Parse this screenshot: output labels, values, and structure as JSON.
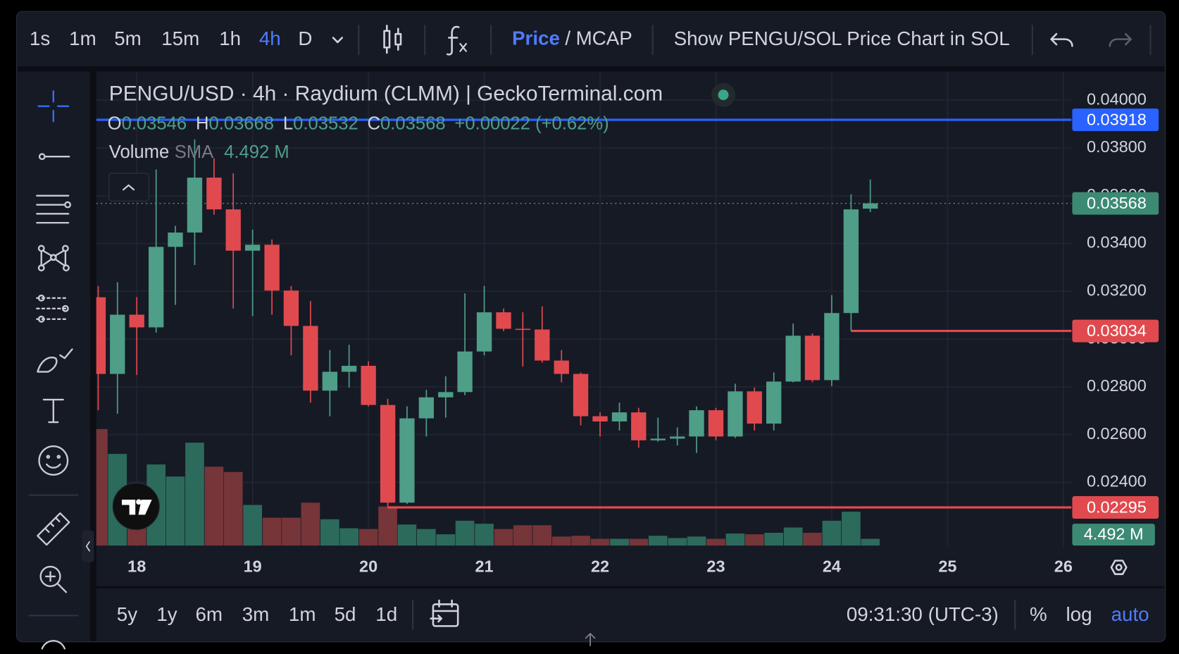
{
  "toolbar": {
    "intervals": [
      "1s",
      "1m",
      "5m",
      "15m",
      "1h",
      "4h",
      "D"
    ],
    "selected_interval": "4h",
    "price_toggle": {
      "price": "Price",
      "separator": "/",
      "mcap": "MCAP"
    },
    "sol_toggle": "Show PENGU/SOL Price Chart in SOL"
  },
  "bottom_bar": {
    "ranges": [
      "5y",
      "1y",
      "6m",
      "3m",
      "1m",
      "5d",
      "1d"
    ],
    "clock": "09:31:30 (UTC-3)",
    "scale_options": [
      "%",
      "log",
      "auto"
    ],
    "selected_scale": "auto"
  },
  "chart_data": {
    "type": "candlestick",
    "title": "PENGU/USD · 4h · Raydium (CLMM) | GeckoTerminal.com",
    "x": [
      17.667,
      17.833,
      18,
      18.167,
      18.333,
      18.5,
      18.667,
      18.833,
      19,
      19.167,
      19.333,
      19.5,
      19.667,
      19.833,
      20,
      20.167,
      20.333,
      20.5,
      20.667,
      20.833,
      21,
      21.167,
      21.333,
      21.5,
      21.667,
      21.833,
      22,
      22.167,
      22.333,
      22.5,
      22.667,
      22.833,
      23,
      23.167,
      23.333,
      23.5,
      23.667,
      23.833,
      24,
      24.167,
      24.333
    ],
    "open": [
      0.03175,
      0.02854,
      0.03102,
      0.03049,
      0.03386,
      0.03446,
      0.03676,
      0.03543,
      0.0337,
      0.03395,
      0.03203,
      0.03055,
      0.02784,
      0.02863,
      0.02888,
      0.02724,
      0.02315,
      0.02668,
      0.02756,
      0.02778,
      0.02948,
      0.03112,
      0.03043,
      0.0304,
      0.0291,
      0.02854,
      0.02677,
      0.02655,
      0.02693,
      0.02576,
      0.02583,
      0.02592,
      0.02702,
      0.02592,
      0.02781,
      0.02646,
      0.02822,
      0.03014,
      0.02828,
      0.03109,
      0.03546
    ],
    "high": [
      0.03222,
      0.03238,
      0.03175,
      0.0371,
      0.03474,
      0.03836,
      0.03757,
      0.03694,
      0.03458,
      0.03417,
      0.03222,
      0.03159,
      0.02954,
      0.02976,
      0.02907,
      0.0275,
      0.02718,
      0.02787,
      0.02844,
      0.03191,
      0.03222,
      0.03128,
      0.03112,
      0.03137,
      0.02954,
      0.0286,
      0.02693,
      0.02734,
      0.02712,
      0.02671,
      0.0263,
      0.02718,
      0.02712,
      0.02813,
      0.02797,
      0.0286,
      0.03065,
      0.03024,
      0.03184,
      0.03606,
      0.03668
    ],
    "low": [
      0.02702,
      0.02687,
      0.0285,
      0.03027,
      0.03143,
      0.0331,
      0.03521,
      0.03128,
      0.03096,
      0.03102,
      0.02932,
      0.02734,
      0.02677,
      0.02797,
      0.02718,
      0.02295,
      0.02309,
      0.02592,
      0.02671,
      0.02765,
      0.02932,
      0.03033,
      0.02885,
      0.02901,
      0.02819,
      0.02639,
      0.02592,
      0.02617,
      0.02545,
      0.0257,
      0.02554,
      0.02523,
      0.02576,
      0.02586,
      0.02617,
      0.02617,
      0.02819,
      0.02819,
      0.02803,
      0.03034,
      0.03532
    ],
    "close": [
      0.02854,
      0.03102,
      0.03049,
      0.03386,
      0.03446,
      0.03676,
      0.03543,
      0.0337,
      0.03395,
      0.03203,
      0.03055,
      0.02784,
      0.02863,
      0.02888,
      0.02724,
      0.02315,
      0.02668,
      0.02756,
      0.02778,
      0.02948,
      0.03112,
      0.03043,
      0.0304,
      0.0291,
      0.02854,
      0.02677,
      0.02655,
      0.02693,
      0.02576,
      0.02583,
      0.02592,
      0.02702,
      0.02592,
      0.02781,
      0.02646,
      0.02822,
      0.03014,
      0.02828,
      0.03109,
      0.03543,
      0.03568
    ],
    "up_color": "#4e9e88",
    "down_color": "#e04a4f",
    "legend": {
      "open_letter": "O",
      "high_letter": "H",
      "low_letter": "L",
      "close_letter": "C",
      "change": "+0.00022 (+0.62%)"
    },
    "volume": {
      "name": "Volume",
      "indicator": "SMA",
      "sma_label": "4.492 M",
      "last_label": "4.492 M",
      "up_color": "#2c6a5c",
      "down_color": "#763539",
      "values": [
        77.4,
        60.9,
        12.5,
        53.9,
        45.9,
        68.4,
        52.4,
        48.9,
        27,
        18.5,
        18.5,
        28.5,
        17.5,
        11.5,
        11,
        26,
        14,
        11,
        7.5,
        16.5,
        14.5,
        11,
        13.5,
        13.5,
        6,
        6.5,
        4.5,
        4.5,
        4.5,
        6.5,
        5,
        6,
        4.5,
        8,
        7.5,
        8.5,
        12,
        8.5,
        16.5,
        22.5,
        4.492
      ]
    },
    "price_lines": [
      {
        "value": 0.03918,
        "color": "#2962ff",
        "style": "solid"
      },
      {
        "value": 0.03568,
        "color": "#3f8f78",
        "style": "dotted"
      },
      {
        "value": 0.03034,
        "color": "#e04a4f",
        "style": "solid"
      },
      {
        "value": 0.02295,
        "color": "#e04a4f",
        "style": "solid"
      }
    ],
    "xlim": [
      17.65,
      26.07
    ],
    "xticks": [
      18,
      19,
      20,
      21,
      22,
      23,
      24,
      25,
      26
    ],
    "ylim": [
      0.02129,
      0.0412
    ],
    "yticks": [
      {
        "value": 0.024,
        "label": "0.02400"
      },
      {
        "value": 0.026,
        "label": "0.02600"
      },
      {
        "value": 0.028,
        "label": "0.02800"
      },
      {
        "value": 0.03,
        "label": "0.03000"
      },
      {
        "value": 0.032,
        "label": "0.03200"
      },
      {
        "value": 0.034,
        "label": "0.03400"
      },
      {
        "value": 0.036,
        "label": "0.03600"
      },
      {
        "value": 0.038,
        "label": "0.03800"
      },
      {
        "value": 0.04,
        "label": "0.04000"
      }
    ],
    "grid": true
  }
}
